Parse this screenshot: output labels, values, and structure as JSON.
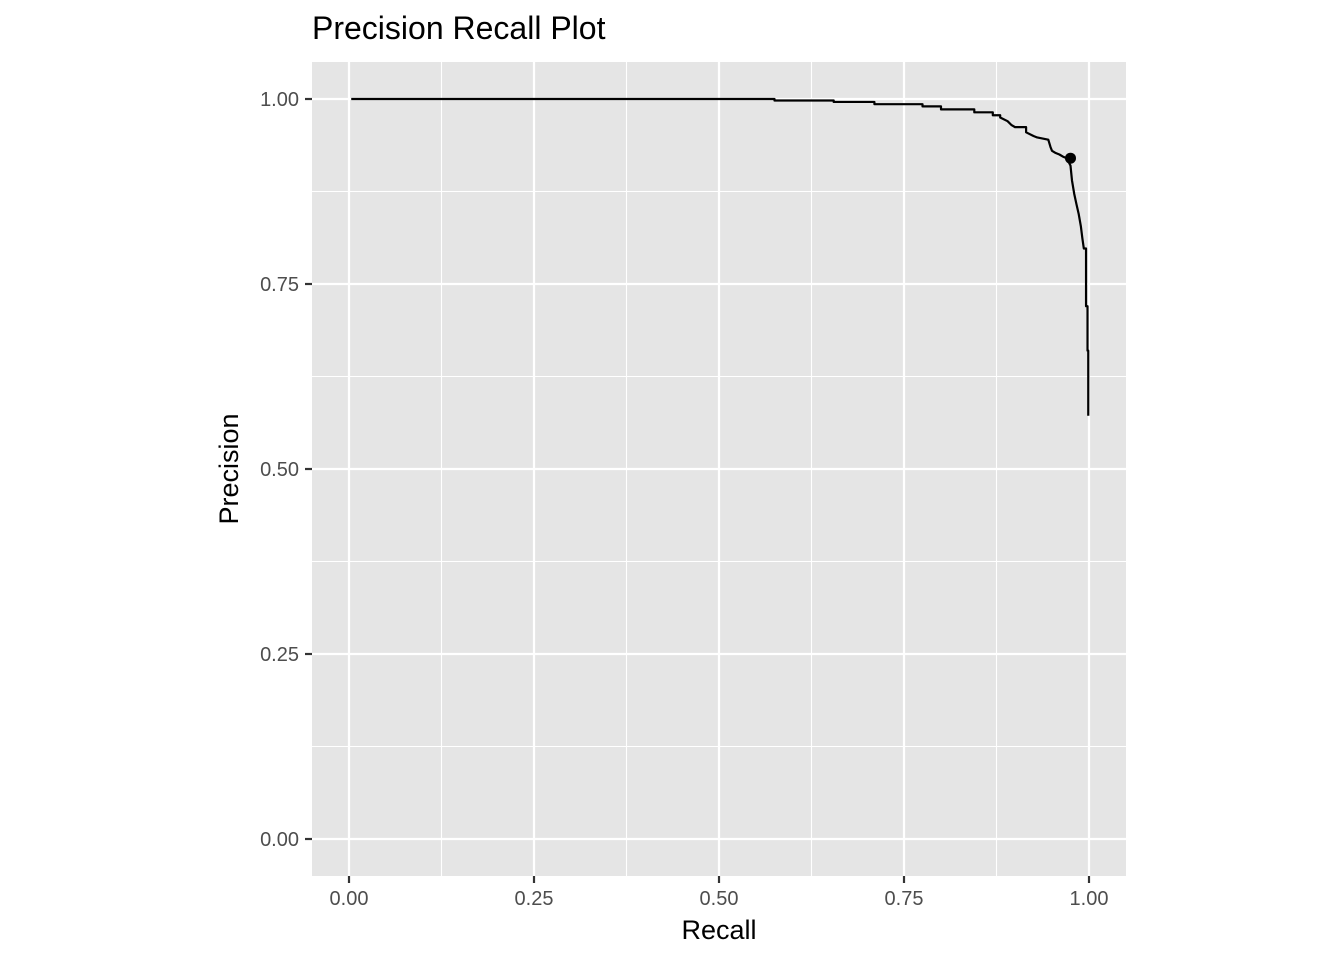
{
  "chart_data": {
    "type": "line",
    "title": "Precision Recall Plot",
    "xlabel": "Recall",
    "ylabel": "Precision",
    "xlim": [
      -0.05,
      1.05
    ],
    "ylim": [
      -0.05,
      1.05
    ],
    "x_ticks": [
      0.0,
      0.25,
      0.5,
      0.75,
      1.0
    ],
    "x_tick_labels": [
      "0.00",
      "0.25",
      "0.50",
      "0.75",
      "1.00"
    ],
    "y_ticks": [
      0.0,
      0.25,
      0.5,
      0.75,
      1.0
    ],
    "y_tick_labels": [
      "0.00",
      "0.25",
      "0.50",
      "0.75",
      "1.00"
    ],
    "grid": true,
    "panel_background": "#e5e5e5",
    "grid_color": "#ffffff",
    "line_color": "#000000",
    "series": [
      {
        "x": [
          0.003,
          0.575,
          0.575,
          0.655,
          0.655,
          0.71,
          0.71,
          0.775,
          0.775,
          0.8,
          0.8,
          0.845,
          0.845,
          0.87,
          0.87,
          0.88,
          0.88,
          0.89,
          0.895,
          0.9,
          0.915,
          0.915,
          0.925,
          0.93,
          0.945,
          0.948,
          0.95,
          0.955,
          0.96,
          0.965,
          0.97,
          0.975,
          0.977,
          0.98,
          0.983,
          0.986,
          0.989,
          0.991,
          0.993,
          0.996,
          0.996,
          0.998,
          0.998,
          0.999,
          0.999
        ],
        "y": [
          1.0,
          1.0,
          0.998,
          0.998,
          0.996,
          0.996,
          0.993,
          0.993,
          0.99,
          0.99,
          0.986,
          0.986,
          0.982,
          0.982,
          0.978,
          0.978,
          0.975,
          0.97,
          0.965,
          0.962,
          0.962,
          0.955,
          0.95,
          0.948,
          0.945,
          0.935,
          0.93,
          0.927,
          0.925,
          0.922,
          0.92,
          0.91,
          0.89,
          0.872,
          0.858,
          0.845,
          0.828,
          0.812,
          0.798,
          0.798,
          0.72,
          0.72,
          0.66,
          0.66,
          0.572
        ]
      }
    ],
    "highlight_point": {
      "x": 0.975,
      "y": 0.92
    }
  }
}
